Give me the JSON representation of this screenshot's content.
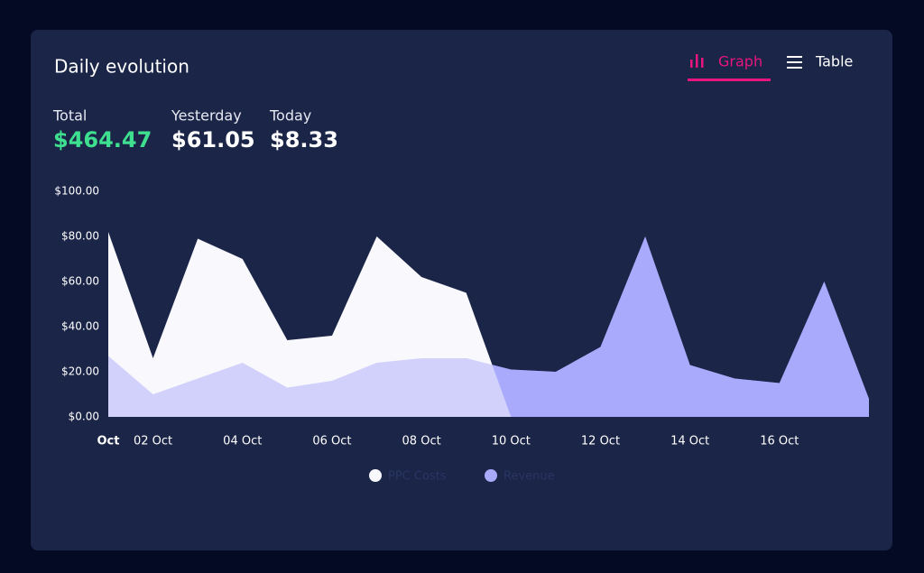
{
  "header": {
    "title": "Daily evolution"
  },
  "tabs": [
    "Graph",
    "Table"
  ],
  "stats": [
    {
      "label": "Total",
      "value": "$464.47"
    },
    {
      "label": "Yesterday",
      "value": "$61.05"
    },
    {
      "label": "Today",
      "value": "$8.33"
    }
  ],
  "chart_data": {
    "type": "area",
    "categories": [
      "Oct",
      "02 Oct",
      null,
      "04 Oct",
      null,
      "06 Oct",
      null,
      "08 Oct",
      null,
      "10 Oct",
      null,
      "12 Oct",
      null,
      "14 Oct",
      null,
      "16 Oct",
      null,
      null
    ],
    "series": [
      {
        "name": "PPC Costs",
        "color": "#f8f8fd",
        "values": [
          82,
          26,
          79,
          70,
          34,
          36,
          80,
          62,
          55,
          0,
          null,
          null,
          null,
          null,
          null,
          null,
          null,
          null
        ]
      },
      {
        "name": "Revenue",
        "color": "#aaaafc",
        "values": [
          27,
          10,
          17,
          24,
          13,
          16,
          24,
          26,
          26,
          21,
          20,
          31,
          80,
          23,
          17,
          15,
          60,
          8
        ]
      }
    ],
    "ylim": [
      0,
      100
    ],
    "yticks": [
      {
        "value": 0,
        "label": "$0.00"
      },
      {
        "value": 20,
        "label": "$20.00"
      },
      {
        "value": 40,
        "label": "$40.00"
      },
      {
        "value": 60,
        "label": "$60.00"
      },
      {
        "value": 80,
        "label": "$80.00"
      },
      {
        "value": 100,
        "label": "$100.00"
      }
    ]
  }
}
